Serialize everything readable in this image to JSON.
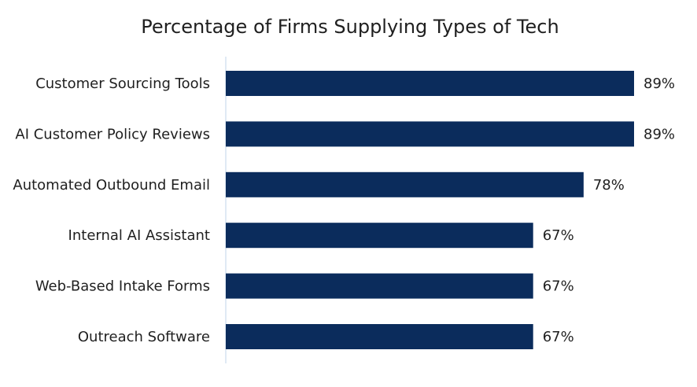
{
  "chart_data": {
    "type": "bar",
    "orientation": "horizontal",
    "title": "Percentage of Firms Supplying Types of Tech",
    "categories": [
      "Customer Sourcing Tools",
      "AI Customer Policy Reviews",
      "Automated Outbound Email",
      "Internal AI Assistant",
      "Web-Based Intake Forms",
      "Outreach Software"
    ],
    "values": [
      89,
      89,
      78,
      67,
      67,
      67
    ],
    "value_labels": [
      "89%",
      "89%",
      "78%",
      "67%",
      "67%",
      "67%"
    ],
    "xlim": [
      0,
      89
    ],
    "xlabel": "",
    "ylabel": "",
    "grid": false,
    "legend": "none",
    "bar_color": "#0b2c5c",
    "axis_color": "#d6e4f0"
  }
}
